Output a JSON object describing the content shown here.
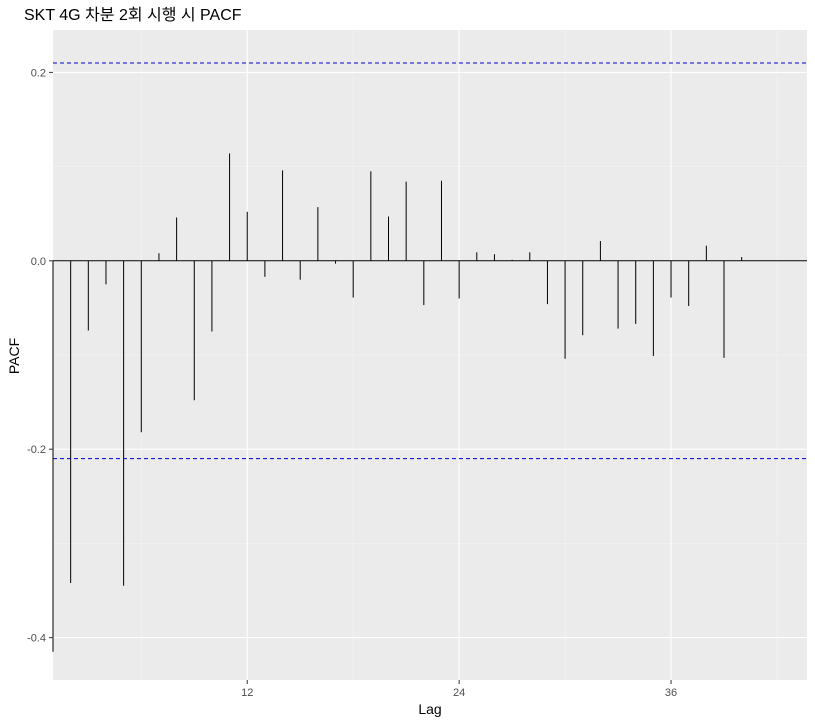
{
  "chart_data": {
    "type": "bar",
    "title": "SKT 4G 차분 2회 시행 시 PACF",
    "xlabel": "Lag",
    "ylabel": "PACF",
    "xlim": [
      1,
      43.7
    ],
    "ylim": [
      -0.445,
      0.245
    ],
    "x_ticks": [
      12,
      24,
      36
    ],
    "x_tick_labels": [
      "12",
      "24",
      "36"
    ],
    "y_ticks": [
      -0.4,
      -0.2,
      0.0,
      0.2
    ],
    "y_tick_labels": [
      "-0.4",
      "-0.2",
      "0.0",
      "0.2"
    ],
    "confidence_limit": 0.21,
    "grid": true,
    "lags": [
      1,
      2,
      3,
      4,
      5,
      6,
      7,
      8,
      9,
      10,
      11,
      12,
      13,
      14,
      15,
      16,
      17,
      18,
      19,
      20,
      21,
      22,
      23,
      24,
      25,
      26,
      27,
      28,
      29,
      30,
      31,
      32,
      33,
      34,
      35,
      36,
      37,
      38,
      39,
      40,
      41
    ],
    "values": [
      -0.415,
      -0.342,
      -0.074,
      -0.025,
      -0.345,
      -0.182,
      0.008,
      0.046,
      -0.148,
      -0.075,
      0.114,
      0.052,
      -0.017,
      0.096,
      -0.02,
      0.057,
      -0.003,
      -0.039,
      0.095,
      0.047,
      0.084,
      -0.047,
      0.085,
      -0.04,
      0.009,
      0.007,
      0.001,
      0.009,
      -0.046,
      -0.104,
      -0.079,
      0.021,
      -0.072,
      -0.067,
      -0.101,
      -0.039,
      -0.048,
      0.016,
      -0.103,
      0.004,
      0.0
    ],
    "colors": {
      "panel": "#ebebeb",
      "grid_major": "#ffffff",
      "grid_minor": "#f5f5f5",
      "bar": "#000000",
      "confidence_line": "#0000cc"
    }
  }
}
